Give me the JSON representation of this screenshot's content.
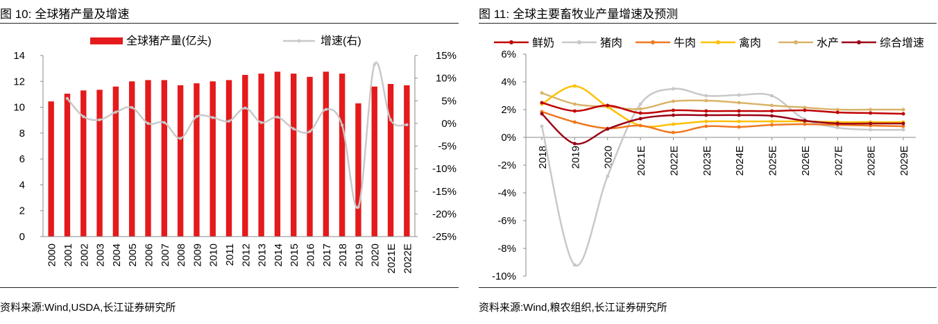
{
  "left": {
    "figure_label": "图 10:",
    "title": "全球猪产量及增速",
    "source": "资料来源:Wind,USDA,长江证券研究所"
  },
  "right": {
    "figure_label": "图 11:",
    "title": "全球主要畜牧业产量增速及预测",
    "source": "资料来源:Wind,粮农组织,长江证券研究所"
  },
  "colors": {
    "bar": "#e41a1c",
    "growth_line": "#c8c8c8",
    "milk": "#c00000",
    "pork": "#c8c8c8",
    "beef": "#f07820",
    "poultry": "#ffc000",
    "aquatic": "#d9b36a",
    "composite": "#9b0015"
  },
  "chart_data": [
    {
      "type": "bar",
      "categories": [
        "2000",
        "2001",
        "2002",
        "2003",
        "2004",
        "2005",
        "2006",
        "2007",
        "2008",
        "2009",
        "2010",
        "2011",
        "2012",
        "2013",
        "2014",
        "2015",
        "2016",
        "2017",
        "2018",
        "2019",
        "2020",
        "2021E",
        "2022E"
      ],
      "y_ticks": [
        "0",
        "2",
        "4",
        "6",
        "8",
        "10",
        "12",
        "14"
      ],
      "y2_ticks": [
        "-25%",
        "-20%",
        "-15%",
        "-10%",
        "-5%",
        "0%",
        "5%",
        "10%",
        "15%"
      ],
      "ylim": [
        0,
        14
      ],
      "y2lim": [
        -25,
        15
      ],
      "legend_position": "top",
      "series": [
        {
          "name": "全球猪产量(亿头)",
          "kind": "bar",
          "axis": "left",
          "values": [
            10.45,
            11.05,
            11.3,
            11.35,
            11.6,
            12.0,
            12.1,
            12.1,
            11.7,
            11.85,
            12.0,
            12.1,
            12.5,
            12.6,
            12.75,
            12.6,
            12.35,
            12.75,
            12.6,
            10.3,
            11.6,
            11.8,
            11.7
          ]
        },
        {
          "name": "增速(右)",
          "kind": "line",
          "axis": "right",
          "values": [
            null,
            5.5,
            1.5,
            0.8,
            2.5,
            3.5,
            0.0,
            0.2,
            -3.3,
            1.5,
            1.3,
            0.5,
            3.4,
            0.2,
            1.4,
            -1.2,
            -1.8,
            3.1,
            -0.4,
            -18.5,
            13.0,
            0.8,
            -0.3
          ]
        }
      ],
      "grid": false
    },
    {
      "type": "line",
      "categories": [
        "2018",
        "2019",
        "2020",
        "2021E",
        "2022E",
        "2023E",
        "2024E",
        "2025E",
        "2026E",
        "2027E",
        "2028E",
        "2029E"
      ],
      "y_ticks": [
        "-10%",
        "-8%",
        "-6%",
        "-4%",
        "-2%",
        "0%",
        "2%",
        "4%",
        "6%"
      ],
      "ylim": [
        -10,
        6
      ],
      "legend_position": "top",
      "series": [
        {
          "name": "鲜奶",
          "color_key": "milk",
          "values": [
            2.5,
            1.9,
            2.3,
            1.75,
            1.95,
            1.9,
            1.9,
            1.9,
            1.95,
            1.8,
            1.75,
            1.7
          ]
        },
        {
          "name": "猪肉",
          "color_key": "pork",
          "values": [
            0.8,
            -9.2,
            -2.8,
            2.4,
            3.5,
            3.0,
            3.05,
            3.0,
            1.3,
            0.7,
            0.55,
            0.55
          ]
        },
        {
          "name": "牛肉",
          "color_key": "beef",
          "values": [
            1.85,
            1.1,
            0.65,
            0.85,
            0.35,
            0.8,
            0.75,
            0.9,
            0.95,
            0.9,
            0.85,
            0.8
          ]
        },
        {
          "name": "禽肉",
          "color_key": "poultry",
          "values": [
            2.4,
            3.7,
            2.2,
            0.85,
            0.95,
            1.15,
            1.15,
            1.15,
            1.15,
            1.1,
            1.1,
            1.1
          ]
        },
        {
          "name": "水产",
          "color_key": "aquatic",
          "values": [
            3.2,
            2.4,
            2.2,
            2.05,
            2.6,
            2.65,
            2.5,
            2.3,
            2.15,
            2.0,
            2.0,
            2.0
          ]
        },
        {
          "name": "综合增速",
          "color_key": "composite",
          "values": [
            1.7,
            -0.45,
            0.6,
            1.35,
            1.6,
            1.6,
            1.6,
            1.55,
            1.2,
            1.0,
            1.0,
            1.0
          ]
        }
      ],
      "grid": false
    }
  ]
}
